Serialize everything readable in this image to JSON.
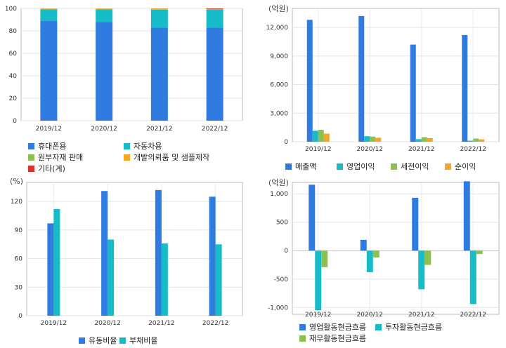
{
  "chart_data": [
    {
      "type": "bar",
      "stacked": true,
      "categories": [
        "2019/12",
        "2020/12",
        "2021/12",
        "2022/12"
      ],
      "ylim": [
        0,
        100
      ],
      "yticks": [
        0,
        20,
        40,
        60,
        80,
        100
      ],
      "ytick_labels": [
        "0",
        "20",
        "40",
        "60",
        "80",
        "100"
      ],
      "grid": true,
      "legend": "bottom",
      "series": [
        {
          "name": "휴대폰용",
          "color": "#2f7be0",
          "values": [
            89,
            88,
            83,
            83
          ]
        },
        {
          "name": "자동차용",
          "color": "#17bcc8",
          "values": [
            10,
            11,
            16,
            16
          ]
        },
        {
          "name": "원부자재 판매",
          "color": "#8cc152",
          "values": [
            0.5,
            0.5,
            0.3,
            0.4
          ]
        },
        {
          "name": "개발의뢰품 및 샘플제작",
          "color": "#f5a623",
          "values": [
            0.5,
            0.5,
            0.7,
            0.3
          ]
        },
        {
          "name": "기타(계)",
          "color": "#d9342b",
          "values": [
            0,
            0,
            0,
            0.3
          ]
        }
      ]
    },
    {
      "type": "bar",
      "unit": "(억원)",
      "categories": [
        "2019/12",
        "2020/12",
        "2021/12",
        "2022/12"
      ],
      "ylim": [
        0,
        14000
      ],
      "yticks": [
        0,
        3000,
        6000,
        9000,
        12000
      ],
      "ytick_labels": [
        "0",
        "3,000",
        "6,000",
        "9,000",
        "12,000"
      ],
      "grid": true,
      "legend": "bottom",
      "series": [
        {
          "name": "매출액",
          "color": "#2f7be0",
          "values": [
            12800,
            13200,
            10200,
            11200
          ]
        },
        {
          "name": "영업이익",
          "color": "#17bcc8",
          "values": [
            1150,
            580,
            270,
            110
          ]
        },
        {
          "name": "세전이익",
          "color": "#8cc152",
          "values": [
            1250,
            530,
            480,
            330
          ]
        },
        {
          "name": "순이익",
          "color": "#f5a623",
          "values": [
            850,
            420,
            380,
            250
          ]
        }
      ]
    },
    {
      "type": "bar",
      "unit": "(%)",
      "categories": [
        "2019/12",
        "2020/12",
        "2021/12",
        "2022/12"
      ],
      "ylim": [
        0,
        140
      ],
      "yticks": [
        0,
        30,
        60,
        90,
        120
      ],
      "ytick_labels": [
        "0",
        "30",
        "60",
        "90",
        "120"
      ],
      "grid": true,
      "legend": "bottom",
      "series": [
        {
          "name": "유동비율",
          "color": "#2f7be0",
          "values": [
            97,
            131,
            132,
            125
          ]
        },
        {
          "name": "부채비율",
          "color": "#17bcc8",
          "values": [
            112,
            80,
            76,
            75
          ]
        }
      ]
    },
    {
      "type": "bar",
      "unit": "(억원)",
      "categories": [
        "2019/12",
        "2020/12",
        "2021/12",
        "2022/12"
      ],
      "ylim": [
        -1120,
        1200
      ],
      "yticks": [
        -1000,
        -500,
        0,
        500,
        1000
      ],
      "ytick_labels": [
        "-1,000",
        "-500",
        "0",
        "500",
        "1,000"
      ],
      "grid": true,
      "legend": "bottom",
      "series": [
        {
          "name": "영업활동현금흐름",
          "color": "#2f7be0",
          "values": [
            1160,
            190,
            930,
            1220
          ]
        },
        {
          "name": "투자활동현금흐름",
          "color": "#17bcc8",
          "values": [
            -1050,
            -380,
            -680,
            -940
          ]
        },
        {
          "name": "재무활동현금흐름",
          "color": "#8cc152",
          "values": [
            -290,
            -120,
            -250,
            -60
          ]
        }
      ]
    }
  ]
}
